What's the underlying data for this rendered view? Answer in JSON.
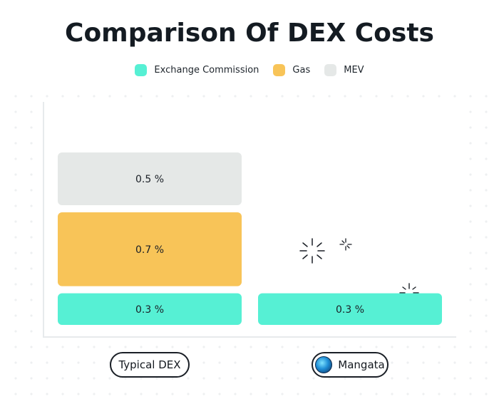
{
  "title": "Comparison Of DEX Costs",
  "legend": [
    {
      "label": "Exchange Commission",
      "color": "#56f0d4"
    },
    {
      "label": "Gas",
      "color": "#f8c458"
    },
    {
      "label": "MEV",
      "color": "#e5e8e7"
    }
  ],
  "chart_data": {
    "type": "bar",
    "stacked": true,
    "categories": [
      "Typical DEX",
      "Mangata"
    ],
    "series": [
      {
        "name": "Exchange Commission",
        "values": [
          0.3,
          0.3
        ],
        "labels": [
          "0.3 %",
          "0.3 %"
        ],
        "color": "#56f0d4"
      },
      {
        "name": "Gas",
        "values": [
          0.7,
          0
        ],
        "labels": [
          "0.7 %",
          ""
        ],
        "color": "#f8c458"
      },
      {
        "name": "MEV",
        "values": [
          0.5,
          0
        ],
        "labels": [
          "0.5 %",
          ""
        ],
        "color": "#e5e8e7"
      }
    ],
    "unit": "%",
    "grid": false,
    "legend_position": "top"
  },
  "category_pills": [
    {
      "label": "Typical DEX",
      "logo": null
    },
    {
      "label": "Mangata",
      "logo": "mangata-logo-icon"
    }
  ]
}
